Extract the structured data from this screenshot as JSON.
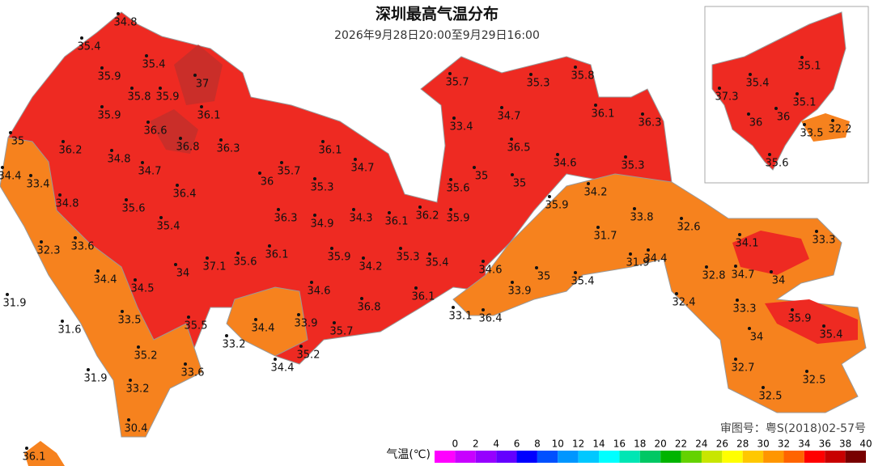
{
  "header": {
    "title": "深圳最高气温分布",
    "subtitle": "2026年9月28日20:00至9月29日16:00"
  },
  "stations": [
    34.8,
    35.4,
    35.4,
    35.9,
    37,
    35.8,
    35.9,
    35.9,
    36.1,
    36.6,
    35,
    36.2,
    36.8,
    36.3,
    34.8,
    34.7,
    34.4,
    33.4,
    36.4,
    34.8,
    35.6,
    35.4,
    32.3,
    33.6,
    37.1,
    35.6,
    34,
    34.4,
    34.5,
    31.9,
    33.5,
    31.6,
    35.5,
    34.4,
    33.2,
    35.2,
    33.6,
    31.9,
    33.2,
    30.4,
    36.1,
    36.1,
    35.7,
    34.7,
    36,
    35.3,
    36.3,
    34.9,
    34.3,
    36.1,
    36.2,
    35.9,
    36.1,
    35.9,
    34.2,
    35.3,
    35.4,
    34.6,
    36.8,
    34.6,
    35,
    33.9,
    36.1,
    33.9,
    35.7,
    33.1,
    36.4,
    35.2,
    34.4,
    35.7,
    35.3,
    35.8,
    33.4,
    34.7,
    36.1,
    36.3,
    36.5,
    34.6,
    35.3,
    35,
    35,
    35.6,
    34.2,
    35.9,
    33.8,
    32.6,
    31.7,
    34.1,
    33.3,
    31.9,
    34.4,
    32.8,
    34.7,
    34,
    35.4,
    32.4,
    33.3,
    35.9,
    35.4,
    34,
    32.7,
    32.5,
    32.5
  ],
  "inset_stations": [
    35.1,
    35.4,
    37.3,
    35.1,
    36,
    36,
    33.5,
    32.2,
    35.6
  ],
  "approval": "审图号：粤S(2018)02-57号",
  "legend": {
    "label": "气温(℃)",
    "ticks": [
      0,
      2,
      4,
      6,
      8,
      10,
      12,
      14,
      16,
      18,
      20,
      22,
      24,
      26,
      28,
      30,
      32,
      34,
      36,
      38,
      40
    ],
    "colors": [
      "#ff00ff",
      "#c800ff",
      "#9600ff",
      "#6400ff",
      "#0000ff",
      "#0050ff",
      "#0096ff",
      "#00c8ff",
      "#00ffff",
      "#00e6b4",
      "#00c864",
      "#00b400",
      "#64d200",
      "#c8e600",
      "#ffff00",
      "#ffc800",
      "#ff9600",
      "#ff6400",
      "#ff0000",
      "#c80000",
      "#780000"
    ]
  }
}
